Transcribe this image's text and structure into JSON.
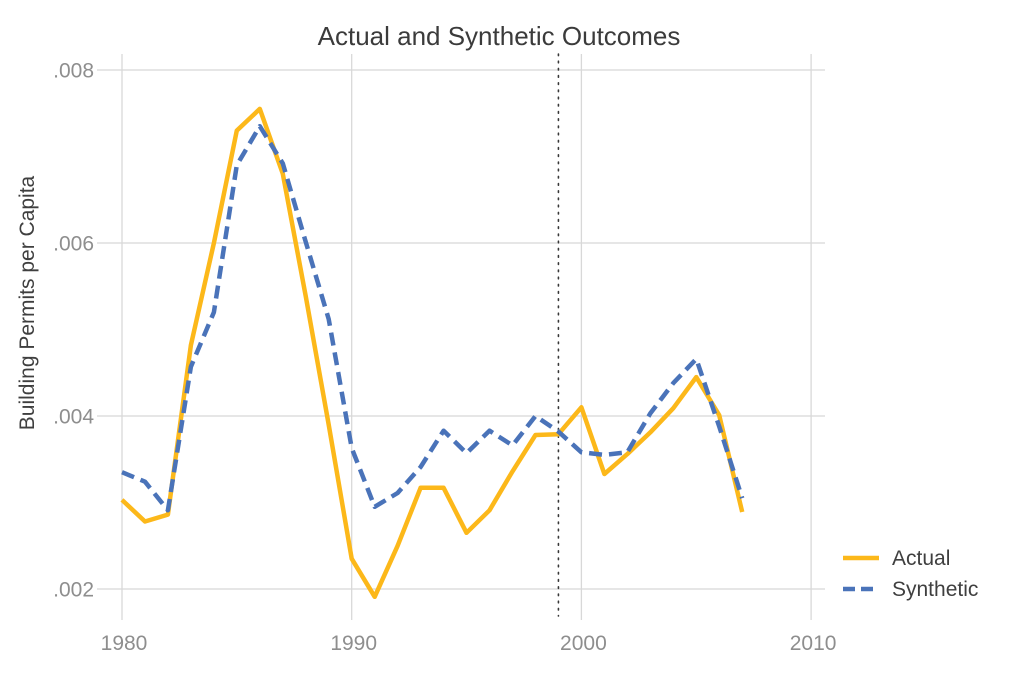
{
  "title": "Actual and Synthetic Outcomes",
  "colors": {
    "actual": "#FCB81A",
    "synthetic": "#4A73B9",
    "grid": "#d8d8d8",
    "tick_text": "#8e8e8e",
    "text": "#3f3f3f",
    "treatment_line": "#383838",
    "background": "#ffffff"
  },
  "legend": {
    "position": "bottom-right",
    "items": [
      {
        "label": "Actual",
        "style": "solid"
      },
      {
        "label": "Synthetic",
        "style": "dashed"
      }
    ]
  },
  "chart_data": {
    "type": "line",
    "title": "Actual and Synthetic Outcomes",
    "xlabel": "",
    "ylabel": "Building Permits per Capita",
    "grid": true,
    "legend_position": "bottom-right",
    "x": [
      1980,
      1981,
      1982,
      1983,
      1984,
      1985,
      1986,
      1987,
      1988,
      1989,
      1990,
      1991,
      1992,
      1993,
      1994,
      1995,
      1996,
      1997,
      1998,
      1999,
      2000,
      2001,
      2002,
      2003,
      2004,
      2005,
      2006,
      2007
    ],
    "series": [
      {
        "name": "Actual",
        "color": "#FCB81A",
        "style": "solid",
        "values": [
          0.00303,
          0.00278,
          0.00286,
          0.00482,
          0.006,
          0.0073,
          0.00755,
          0.0068,
          0.00538,
          0.0039,
          0.00235,
          0.00191,
          0.0025,
          0.00317,
          0.00317,
          0.00265,
          0.00291,
          0.00336,
          0.00378,
          0.00379,
          0.0041,
          0.00333,
          0.00356,
          0.00381,
          0.00409,
          0.00445,
          0.00401,
          0.00289
        ]
      },
      {
        "name": "Synthetic",
        "color": "#4A73B9",
        "style": "dashed",
        "values": [
          0.00335,
          0.00324,
          0.00291,
          0.00457,
          0.0052,
          0.0069,
          0.00735,
          0.00692,
          0.00601,
          0.00512,
          0.00363,
          0.00295,
          0.00311,
          0.00341,
          0.00383,
          0.00357,
          0.00383,
          0.00366,
          0.004,
          0.00382,
          0.00358,
          0.00355,
          0.00358,
          0.00403,
          0.00438,
          0.00466,
          0.00388,
          0.00305
        ]
      }
    ],
    "xticks": [
      {
        "value": 1980,
        "label": "1980"
      },
      {
        "value": 1990,
        "label": "1990"
      },
      {
        "value": 2000,
        "label": "2000"
      },
      {
        "value": 2010,
        "label": "2010"
      }
    ],
    "yticks": [
      {
        "value": 0.002,
        "label": ".002"
      },
      {
        "value": 0.004,
        "label": ".004"
      },
      {
        "value": 0.006,
        "label": ".006"
      },
      {
        "value": 0.008,
        "label": ".008"
      }
    ],
    "xlim": [
      1978.9,
      2010.6
    ],
    "ylim": [
      0.0018,
      0.00818
    ],
    "vline": {
      "x": 1999,
      "style": "dotted"
    }
  }
}
